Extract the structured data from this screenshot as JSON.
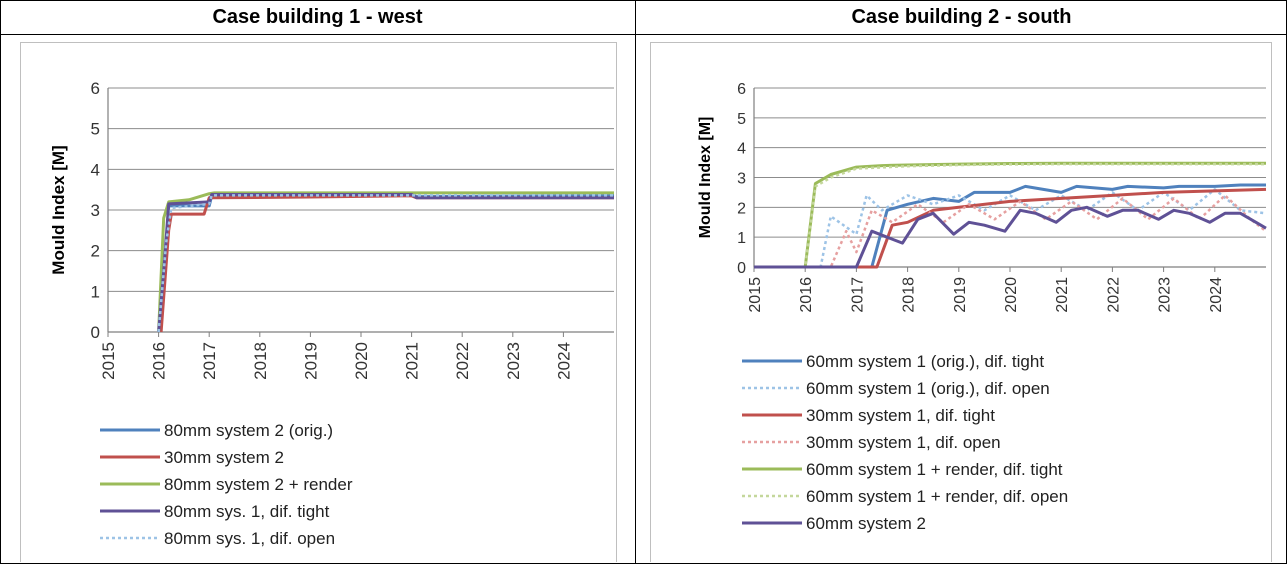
{
  "headers": [
    "Case building 1 - west",
    "Case building 2 - south"
  ],
  "chart_data": [
    {
      "type": "line",
      "title": "Case building 1 - west",
      "xlabel": "",
      "ylabel": "Mould Index [M]",
      "xlim": [
        2015,
        2025
      ],
      "ylim": [
        0,
        6
      ],
      "xticks": [
        "2015",
        "2016",
        "2017",
        "2018",
        "2019",
        "2020",
        "2021",
        "2022",
        "2023",
        "2024"
      ],
      "yticks": [
        "0",
        "1",
        "2",
        "3",
        "4",
        "5",
        "6"
      ],
      "grid": true,
      "legend_position": "bottom",
      "series": [
        {
          "name": "80mm system 2 (orig.)",
          "color": "#4f81bd",
          "dash": "solid",
          "x": [
            2016.0,
            2016.15,
            2016.2,
            2017.0,
            2017.05,
            2019.0,
            2021.0,
            2021.1,
            2025.0
          ],
          "y": [
            0,
            2.0,
            3.1,
            3.1,
            3.35,
            3.37,
            3.37,
            3.33,
            3.35
          ]
        },
        {
          "name": "30mm system 2",
          "color": "#c0504d",
          "dash": "solid",
          "x": [
            2016.05,
            2016.2,
            2016.25,
            2016.9,
            2017.0,
            2019.0,
            2021.0,
            2021.1,
            2025.0
          ],
          "y": [
            0,
            2.5,
            2.9,
            2.9,
            3.3,
            3.32,
            3.35,
            3.3,
            3.3
          ]
        },
        {
          "name": "80mm system 2 + render",
          "color": "#9bbb59",
          "dash": "solid",
          "x": [
            2016.0,
            2016.1,
            2016.2,
            2016.6,
            2017.0,
            2017.1,
            2021.0,
            2025.0
          ],
          "y": [
            0,
            2.8,
            3.2,
            3.25,
            3.4,
            3.42,
            3.42,
            3.42
          ]
        },
        {
          "name": "80mm sys. 1, dif. tight",
          "color": "#5f5196",
          "dash": "solid",
          "x": [
            2016.0,
            2016.1,
            2016.2,
            2017.0,
            2017.05,
            2019.0,
            2021.0,
            2021.1,
            2025.0
          ],
          "y": [
            0,
            1.5,
            3.15,
            3.2,
            3.38,
            3.38,
            3.38,
            3.3,
            3.3
          ]
        },
        {
          "name": "80mm sys. 1, dif. open",
          "color": "#9dc3e6",
          "dash": "dotted",
          "x": [
            2016.0,
            2016.15,
            2016.25,
            2017.0,
            2017.05,
            2025.0
          ],
          "y": [
            0,
            2.2,
            3.05,
            3.15,
            3.36,
            3.36
          ]
        }
      ]
    },
    {
      "type": "line",
      "title": "Case building 2 - south",
      "xlabel": "",
      "ylabel": "Mould Index [M]",
      "xlim": [
        2015,
        2025
      ],
      "ylim": [
        0,
        6
      ],
      "xticks": [
        "2015",
        "2016",
        "2017",
        "2018",
        "2019",
        "2020",
        "2021",
        "2022",
        "2023",
        "2024"
      ],
      "yticks": [
        "0",
        "1",
        "2",
        "3",
        "4",
        "5",
        "6"
      ],
      "grid": true,
      "legend_position": "bottom",
      "series": [
        {
          "name": "60mm system 1 (orig.), dif. tight",
          "color": "#4f81bd",
          "dash": "solid",
          "x": [
            2015,
            2017.3,
            2017.6,
            2018.0,
            2018.5,
            2019.0,
            2019.3,
            2020.0,
            2020.3,
            2021.0,
            2021.3,
            2022.0,
            2022.3,
            2023.0,
            2023.3,
            2024.0,
            2024.5,
            2025.0
          ],
          "y": [
            0,
            0,
            1.9,
            2.1,
            2.3,
            2.2,
            2.5,
            2.5,
            2.7,
            2.5,
            2.7,
            2.6,
            2.7,
            2.65,
            2.7,
            2.7,
            2.75,
            2.75
          ]
        },
        {
          "name": "60mm system 1 (orig.), dif. open",
          "color": "#9dc3e6",
          "dash": "dotted",
          "x": [
            2015,
            2016.3,
            2016.5,
            2017.0,
            2017.2,
            2017.5,
            2018.0,
            2018.5,
            2019.0,
            2019.5,
            2020.0,
            2020.5,
            2021.0,
            2021.5,
            2022.0,
            2022.5,
            2023.0,
            2023.5,
            2024.0,
            2024.5,
            2025.0
          ],
          "y": [
            0,
            0,
            1.7,
            1.1,
            2.4,
            1.9,
            2.4,
            2.1,
            2.4,
            1.9,
            2.4,
            1.9,
            2.4,
            1.9,
            2.5,
            1.9,
            2.5,
            1.9,
            2.6,
            1.9,
            1.8
          ]
        },
        {
          "name": "30mm system 1, dif. tight",
          "color": "#c0504d",
          "dash": "solid",
          "x": [
            2015,
            2017.4,
            2017.7,
            2018.0,
            2018.5,
            2019.0,
            2020.0,
            2021.0,
            2022.0,
            2023.0,
            2024.0,
            2025.0
          ],
          "y": [
            0,
            0,
            1.4,
            1.5,
            1.9,
            2.0,
            2.2,
            2.3,
            2.4,
            2.5,
            2.55,
            2.6
          ]
        },
        {
          "name": "30mm system 1, dif. open",
          "color": "#e6a0a0",
          "dash": "dotted",
          "x": [
            2015,
            2016.5,
            2016.8,
            2017.0,
            2017.3,
            2017.7,
            2018.2,
            2018.7,
            2019.2,
            2019.7,
            2020.2,
            2020.7,
            2021.2,
            2021.7,
            2022.2,
            2022.7,
            2023.2,
            2023.7,
            2024.2,
            2024.7,
            2025.0
          ],
          "y": [
            0,
            0,
            1.2,
            0.5,
            1.9,
            1.5,
            2.1,
            1.5,
            2.1,
            1.6,
            2.2,
            1.6,
            2.2,
            1.6,
            2.3,
            1.6,
            2.3,
            1.6,
            2.4,
            1.6,
            1.2
          ]
        },
        {
          "name": "60mm system 1 + render, dif. tight",
          "color": "#9bbb59",
          "dash": "solid",
          "x": [
            2015,
            2016.0,
            2016.2,
            2016.5,
            2017.0,
            2017.5,
            2018.0,
            2019.0,
            2020.0,
            2021.0,
            2022.0,
            2023.0,
            2024.0,
            2025.0
          ],
          "y": [
            0,
            0,
            2.8,
            3.1,
            3.35,
            3.4,
            3.42,
            3.45,
            3.47,
            3.48,
            3.48,
            3.48,
            3.48,
            3.48
          ]
        },
        {
          "name": "60mm system 1 + render, dif. open",
          "color": "#c4d79b",
          "dash": "dotted",
          "x": [
            2015,
            2016.0,
            2016.2,
            2016.5,
            2017.0,
            2018.0,
            2019.0,
            2020.0,
            2021.0,
            2022.0,
            2023.0,
            2024.0,
            2025.0
          ],
          "y": [
            0,
            0,
            2.7,
            3.0,
            3.3,
            3.38,
            3.42,
            3.44,
            3.45,
            3.45,
            3.45,
            3.45,
            3.45
          ]
        },
        {
          "name": "60mm system 2",
          "color": "#5f5196",
          "dash": "solid",
          "x": [
            2015,
            2017.0,
            2017.3,
            2017.6,
            2017.9,
            2018.2,
            2018.5,
            2018.9,
            2019.2,
            2019.5,
            2019.9,
            2020.2,
            2020.5,
            2020.9,
            2021.2,
            2021.5,
            2021.9,
            2022.2,
            2022.5,
            2022.9,
            2023.2,
            2023.5,
            2023.9,
            2024.2,
            2024.5,
            2024.9,
            2025.0
          ],
          "y": [
            0,
            0,
            1.2,
            1.0,
            0.8,
            1.6,
            1.8,
            1.1,
            1.5,
            1.4,
            1.2,
            1.9,
            1.8,
            1.5,
            1.9,
            2.0,
            1.7,
            1.9,
            1.9,
            1.6,
            1.9,
            1.8,
            1.5,
            1.8,
            1.8,
            1.4,
            1.3
          ]
        }
      ]
    }
  ]
}
